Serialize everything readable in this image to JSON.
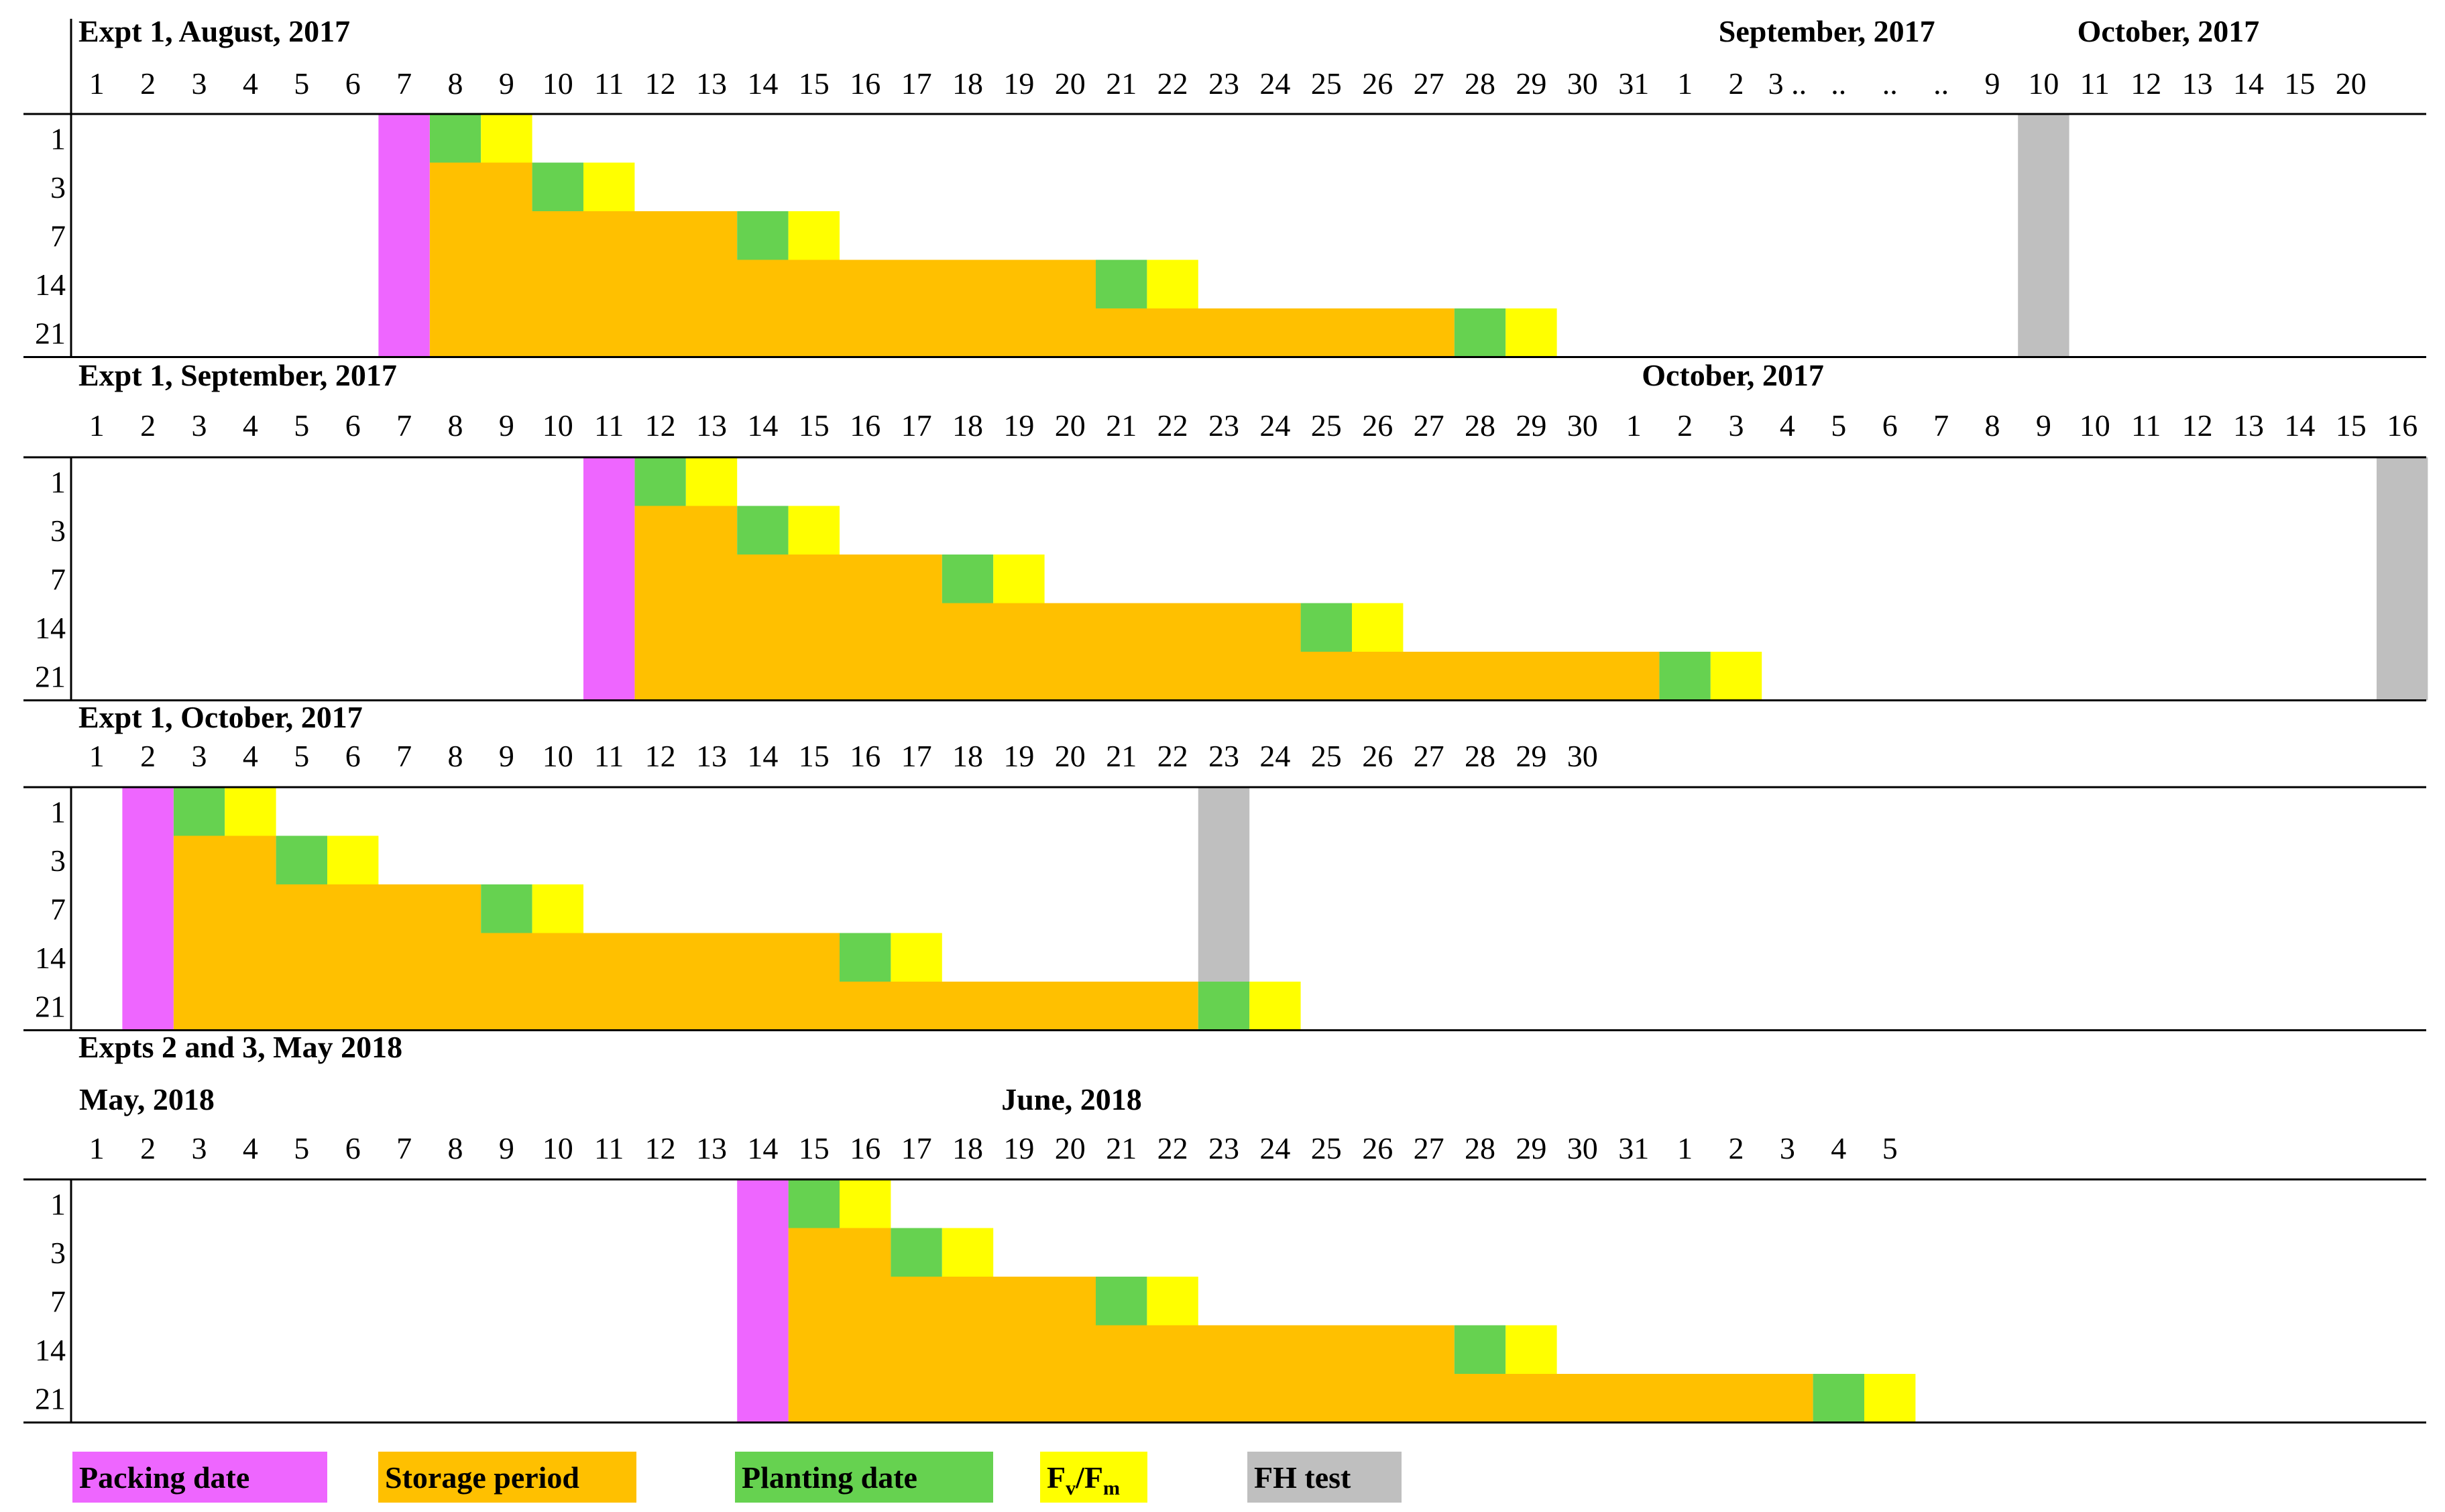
{
  "chart_data": {
    "type": "gantt",
    "colors": {
      "packing": "#EE66FF",
      "storage": "#FFC000",
      "planting": "#66D250",
      "fvfm": "#FFFF00",
      "fh": "#BFBFBF"
    },
    "legend": [
      {
        "key": "packing",
        "label": "Packing date"
      },
      {
        "key": "storage",
        "label": "Storage period"
      },
      {
        "key": "planting",
        "label": "Planting date"
      },
      {
        "key": "fvfm",
        "label": "Fv/Fm",
        "main": "F",
        "sub1": "v",
        "sep": "/F",
        "sub2": "m"
      },
      {
        "key": "fh",
        "label": "FH test"
      }
    ],
    "panels": [
      {
        "title": "Expt 1, August, 2017",
        "month_labels": [
          {
            "text": "September, 2017",
            "at_col": 32
          },
          {
            "text": "October, 2017",
            "at_col": 39
          }
        ],
        "days": [
          "1",
          "2",
          "3",
          "4",
          "5",
          "6",
          "7",
          "8",
          "9",
          "10",
          "11",
          "12",
          "13",
          "14",
          "15",
          "16",
          "17",
          "18",
          "19",
          "20",
          "21",
          "22",
          "23",
          "24",
          "25",
          "26",
          "27",
          "28",
          "29",
          "30",
          "31",
          "1",
          "2",
          "3 ..",
          "..",
          "..",
          "..",
          "9",
          "10",
          "11",
          "12",
          "13",
          "14",
          "15",
          "20"
        ],
        "rows": [
          "1",
          "3",
          "7",
          "14",
          "21"
        ],
        "packing_col": 6,
        "planting_cols": [
          7,
          9,
          13,
          20,
          27
        ],
        "fh_col": 38
      },
      {
        "title": "Expt 1, September, 2017",
        "month_labels": [
          {
            "text": "October, 2017",
            "at_col": 30.5
          }
        ],
        "days": [
          "1",
          "2",
          "3",
          "4",
          "5",
          "6",
          "7",
          "8",
          "9",
          "10",
          "11",
          "12",
          "13",
          "14",
          "15",
          "16",
          "17",
          "18",
          "19",
          "20",
          "21",
          "22",
          "23",
          "24",
          "25",
          "26",
          "27",
          "28",
          "29",
          "30",
          "1",
          "2",
          "3",
          "4",
          "5",
          "6",
          "7",
          "8",
          "9",
          "10",
          "11",
          "12",
          "13",
          "14",
          "15",
          "16"
        ],
        "rows": [
          "1",
          "3",
          "7",
          "14",
          "21"
        ],
        "packing_col": 10,
        "planting_cols": [
          11,
          13,
          17,
          24,
          31
        ],
        "fh_col": 45
      },
      {
        "title": "Expt 1, October, 2017",
        "month_labels": [],
        "days": [
          "1",
          "2",
          "3",
          "4",
          "5",
          "6",
          "7",
          "8",
          "9",
          "10",
          "11",
          "12",
          "13",
          "14",
          "15",
          "16",
          "17",
          "18",
          "19",
          "20",
          "21",
          "22",
          "23",
          "24",
          "25",
          "26",
          "27",
          "28",
          "29",
          "30"
        ],
        "rows": [
          "1",
          "3",
          "7",
          "14",
          "21"
        ],
        "packing_col": 1,
        "planting_cols": [
          2,
          4,
          8,
          15,
          22
        ],
        "fh_col": 22
      },
      {
        "title": "Expts  2 and 3, May 2018",
        "month_labels": [
          {
            "text": "May, 2018",
            "at_col": 0
          },
          {
            "text": "June, 2018",
            "at_col": 18
          }
        ],
        "days": [
          "1",
          "2",
          "3",
          "4",
          "5",
          "6",
          "7",
          "8",
          "9",
          "10",
          "11",
          "12",
          "13",
          "14",
          "15",
          "16",
          "17",
          "18",
          "19",
          "20",
          "21",
          "22",
          "23",
          "24",
          "25",
          "26",
          "27",
          "28",
          "29",
          "30",
          "31",
          "1",
          "2",
          "3",
          "4",
          "5"
        ],
        "rows": [
          "1",
          "3",
          "7",
          "14",
          "21"
        ],
        "packing_col": 13,
        "planting_cols": [
          14,
          16,
          20,
          27,
          34
        ],
        "fh_col": null
      }
    ]
  }
}
